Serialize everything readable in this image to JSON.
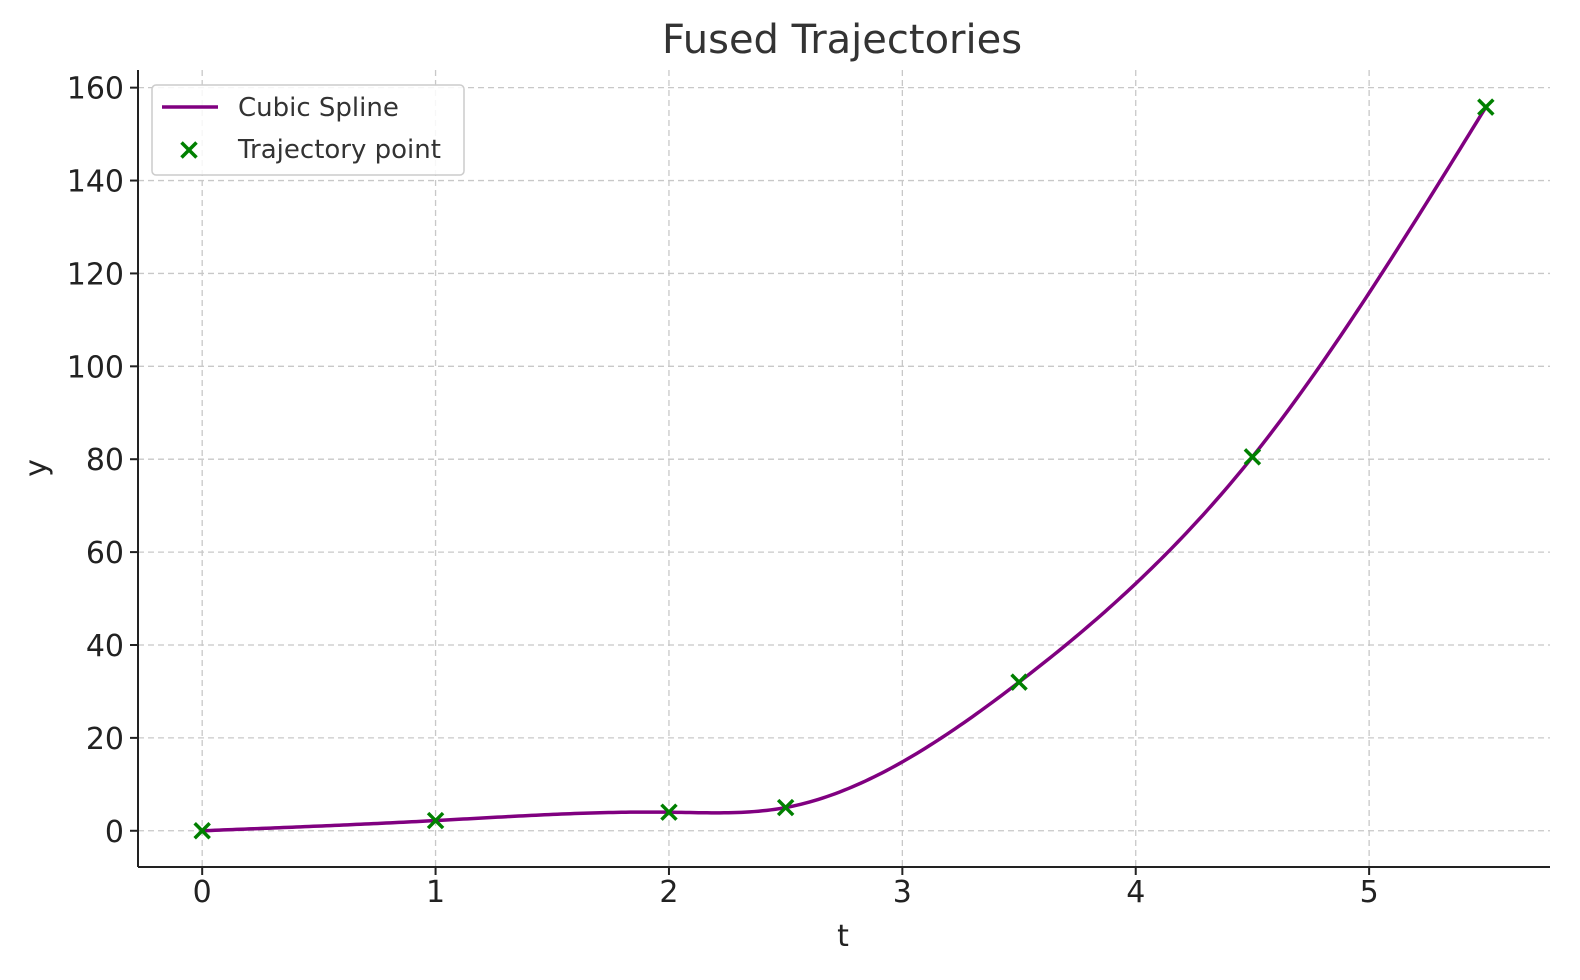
{
  "chart_data": {
    "type": "line",
    "title": "Fused Trajectories",
    "xlabel": "t",
    "ylabel": "y",
    "xlim": [
      -0.275,
      5.775
    ],
    "ylim": [
      -7.8,
      163.8
    ],
    "xticks": [
      0,
      1,
      2,
      3,
      4,
      5
    ],
    "yticks": [
      0,
      20,
      40,
      60,
      80,
      100,
      120,
      140,
      160
    ],
    "grid": true,
    "legend_position": "top-left",
    "series": [
      {
        "name": "Cubic Spline",
        "kind": "line",
        "color": "#800080",
        "x": [
          0,
          1,
          2,
          2.5,
          3.5,
          4.5,
          5.5
        ],
        "y": [
          0,
          2.2,
          4.0,
          5.0,
          32.0,
          80.5,
          155.8
        ]
      },
      {
        "name": "Trajectory point",
        "kind": "scatter",
        "marker": "x",
        "color": "#008000",
        "x": [
          0,
          1,
          2,
          2.5,
          3.5,
          4.5,
          5.5
        ],
        "y": [
          0,
          2.2,
          4.0,
          5.0,
          32.0,
          80.5,
          155.8
        ]
      }
    ]
  }
}
